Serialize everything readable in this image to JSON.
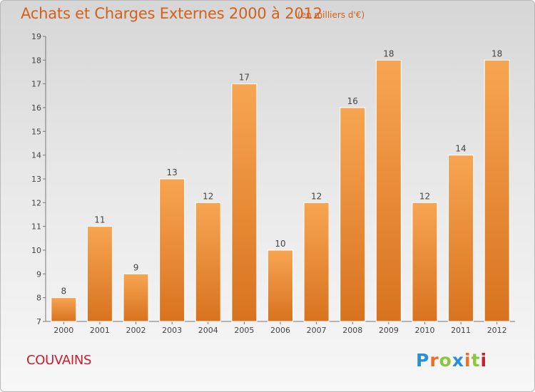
{
  "header": {
    "title": "Achats et Charges Externes 2000 à 2012",
    "subtitle": "(en milliers d'€)"
  },
  "footer": {
    "commune": "COUVAINS",
    "logo_text": "Proxiti",
    "logo_letters": [
      {
        "ch": "P",
        "color": "#2a8fd6"
      },
      {
        "ch": "r",
        "color": "#e8702a"
      },
      {
        "ch": "o",
        "color": "#8cc63f"
      },
      {
        "ch": "x",
        "color": "#2a8fd6"
      },
      {
        "ch": "i",
        "color": "#e8702a"
      },
      {
        "ch": "t",
        "color": "#8cc63f"
      },
      {
        "ch": "i",
        "color": "#c4202e"
      }
    ]
  },
  "chart_data": {
    "type": "bar",
    "title": "Achats et Charges Externes 2000 à 2012",
    "subtitle": "(en milliers d'€)",
    "categories": [
      "2000",
      "2001",
      "2002",
      "2003",
      "2004",
      "2005",
      "2006",
      "2007",
      "2008",
      "2009",
      "2010",
      "2011",
      "2012"
    ],
    "values": [
      8,
      11,
      9,
      13,
      12,
      17,
      10,
      12,
      16,
      18,
      12,
      14,
      18
    ],
    "ylim": [
      7,
      19
    ],
    "yticks": [
      7,
      8,
      9,
      10,
      11,
      12,
      13,
      14,
      15,
      16,
      17,
      18,
      19
    ],
    "grid": false,
    "data_labels": true,
    "bar_color_top": "#f7a552",
    "bar_color_bottom": "#d8731f",
    "text_color": "#d2611c",
    "commune_color": "#c4202e"
  }
}
